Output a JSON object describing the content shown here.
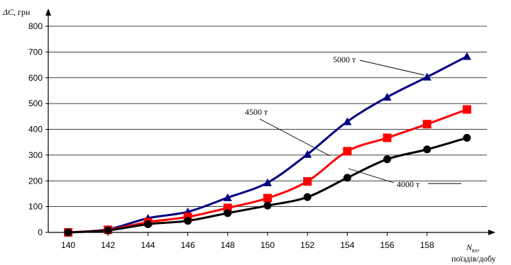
{
  "chart_data": {
    "type": "line",
    "x": [
      140,
      142,
      144,
      146,
      148,
      150,
      152,
      154,
      156,
      158,
      160
    ],
    "x_tick_labels": [
      "140",
      "142",
      "144",
      "146",
      "148",
      "150",
      "152",
      "154",
      "156",
      "158"
    ],
    "xlim": [
      139,
      161
    ],
    "ylim": [
      0,
      800
    ],
    "y_ticks": [
      0,
      100,
      200,
      300,
      400,
      500,
      600,
      700,
      800
    ],
    "ylabel": {
      "symbol": "ΔC",
      "unit": ", грн"
    },
    "xlabel": {
      "symbol": "N",
      "subscript": "вх",
      "suffix": ",",
      "line2": "поїздів/добу"
    },
    "grid": "horizontal",
    "series": [
      {
        "name": "5000 т",
        "marker": "triangle",
        "color": "#000080",
        "values": [
          0,
          12,
          55,
          80,
          135,
          193,
          303,
          430,
          525,
          603,
          683
        ]
      },
      {
        "name": "4500 т",
        "marker": "square",
        "color": "#ff0000",
        "values": [
          0,
          10,
          40,
          60,
          95,
          133,
          198,
          315,
          367,
          420,
          477
        ]
      },
      {
        "name": "4000 т",
        "marker": "circle",
        "color": "#000000",
        "values": [
          0,
          8,
          32,
          45,
          75,
          104,
          137,
          212,
          284,
          322,
          367
        ]
      }
    ]
  }
}
